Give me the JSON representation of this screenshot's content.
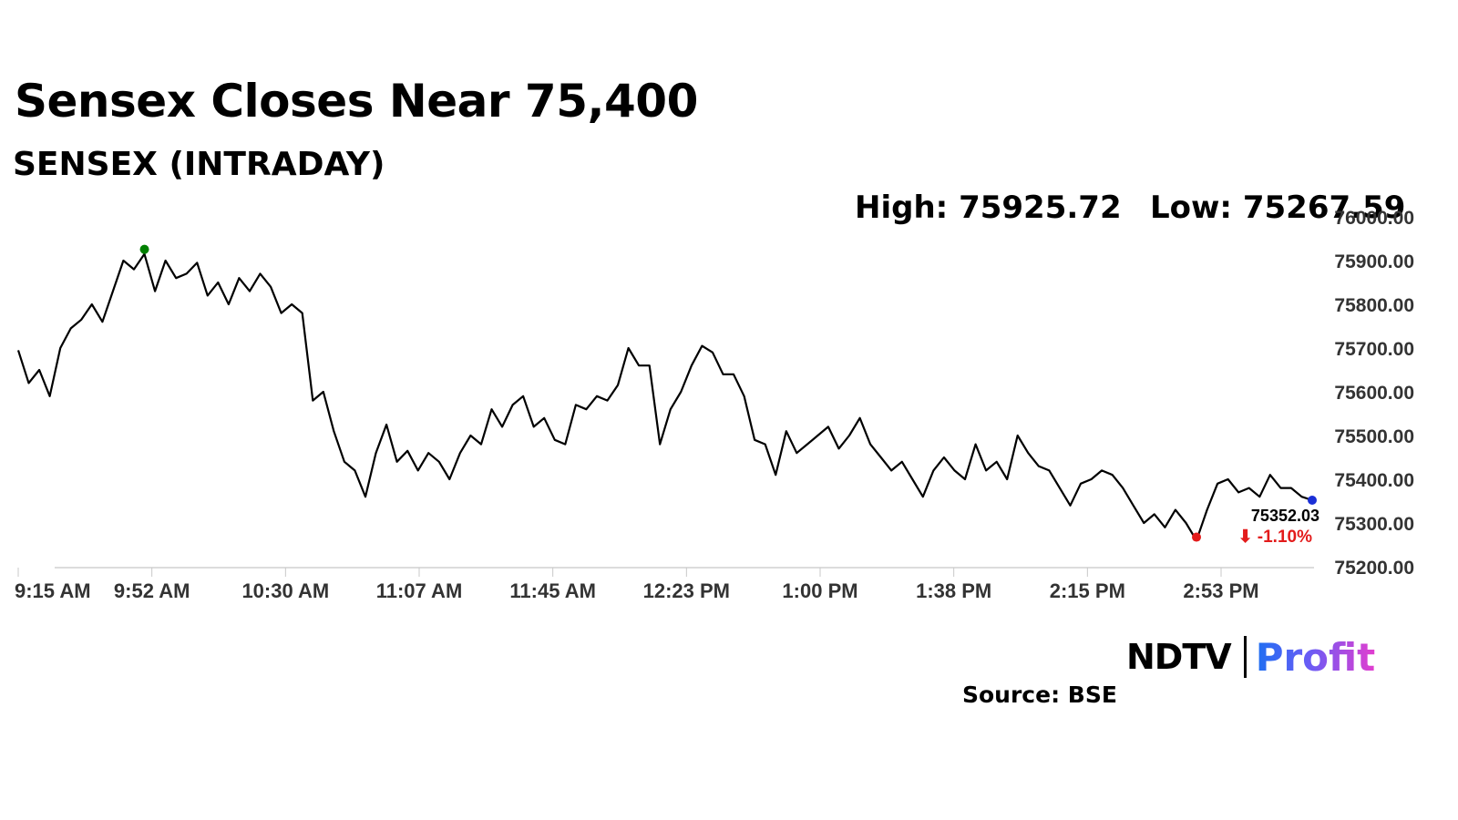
{
  "header": {
    "title": "Sensex Closes Near 75,400",
    "subtitle": "SENSEX (INTRADAY)"
  },
  "stats": {
    "high": "High: 75925.72",
    "low": "Low: 75267.59"
  },
  "last": {
    "value": "75352.03",
    "change": "⬇ -1.10%"
  },
  "footer": {
    "source": "Source: BSE",
    "logo_ndtv": "NDTV",
    "logo_profit": "Profit"
  },
  "colors": {
    "line": "#000000",
    "high_marker": "#008000",
    "low_marker": "#e31b1b",
    "last_marker": "#1a2fd6",
    "change_negative": "#e31b1b"
  },
  "chart_data": {
    "type": "line",
    "title": "SENSEX (INTRADAY)",
    "xlabel": "",
    "ylabel": "",
    "ylim": [
      75200,
      76000
    ],
    "y_ticks": [
      "75200.00",
      "75300.00",
      "75400.00",
      "75500.00",
      "75600.00",
      "75700.00",
      "75800.00",
      "75900.00",
      "76000.00"
    ],
    "x_ticks": [
      "9:15 AM",
      "9:52 AM",
      "10:30 AM",
      "11:07 AM",
      "11:45 AM",
      "12:23 PM",
      "1:00 PM",
      "1:38 PM",
      "2:15 PM",
      "2:53 PM"
    ],
    "grid": false,
    "series": [
      {
        "values": [
          75695,
          75620,
          75650,
          75590,
          75700,
          75745,
          75765,
          75800,
          75760,
          75830,
          75900,
          75880,
          75915,
          75830,
          75900,
          75860,
          75870,
          75895,
          75820,
          75850,
          75800,
          75860,
          75830,
          75870,
          75840,
          75780,
          75800,
          75780,
          75580,
          75600,
          75510,
          75440,
          75420,
          75360,
          75460,
          75525,
          75440,
          75465,
          75420,
          75460,
          75440,
          75400,
          75460,
          75500,
          75480,
          75560,
          75520,
          75570,
          75590,
          75520,
          75540,
          75490,
          75480,
          75570,
          75560,
          75590,
          75580,
          75615,
          75700,
          75660,
          75660,
          75480,
          75560,
          75600,
          75660,
          75705,
          75690,
          75640,
          75640,
          75590,
          75490,
          75480,
          75410,
          75510,
          75460,
          75480,
          75500,
          75520,
          75470,
          75500,
          75540,
          75480,
          75450,
          75420,
          75440,
          75400,
          75360,
          75420,
          75450,
          75420,
          75400,
          75480,
          75420,
          75440,
          75400,
          75500,
          75460,
          75430,
          75420,
          75380,
          75340,
          75390,
          75400,
          75420,
          75410,
          75380,
          75340,
          75300,
          75320,
          75290,
          75330,
          75300,
          75260,
          75330,
          75390,
          75400,
          75370,
          75380,
          75360,
          75410,
          75380,
          75380,
          75360,
          75352
        ]
      }
    ],
    "markers": {
      "high": 75925.72,
      "low": 75267.59,
      "last": 75352.03
    }
  }
}
